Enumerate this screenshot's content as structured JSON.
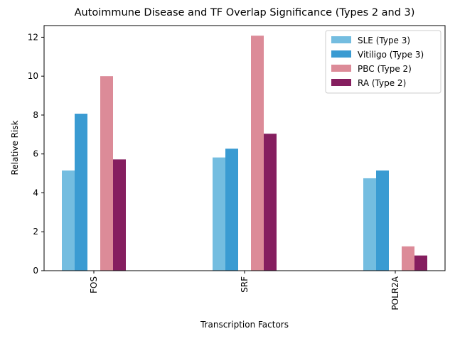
{
  "chart_data": {
    "type": "bar",
    "title": "Autoimmune Disease and TF Overlap Significance (Types 2 and 3)",
    "xlabel": "Transcription Factors",
    "ylabel": "Relative Risk",
    "categories": [
      "FOS",
      "SRF",
      "POLR2A"
    ],
    "ylim": [
      0,
      12.6
    ],
    "yticks": [
      0,
      2,
      4,
      6,
      8,
      10,
      12
    ],
    "series": [
      {
        "name": "SLE (Type 3)",
        "color": "#74bde0",
        "values": [
          5.15,
          5.82,
          4.75
        ]
      },
      {
        "name": "Vitiligo (Type 3)",
        "color": "#3a9bd2",
        "values": [
          8.07,
          6.27,
          5.15
        ]
      },
      {
        "name": "PBC (Type 2)",
        "color": "#dc8b98",
        "values": [
          10.0,
          12.08,
          1.25
        ]
      },
      {
        "name": "RA (Type 2)",
        "color": "#851e5f",
        "values": [
          5.72,
          7.04,
          0.78
        ]
      }
    ],
    "slot_series_order": [
      "SLE (Type 3)",
      "Vitiligo (Type 3)",
      null,
      "PBC (Type 2)",
      "RA (Type 2)"
    ],
    "legend_position": "top-right",
    "grid": false
  }
}
